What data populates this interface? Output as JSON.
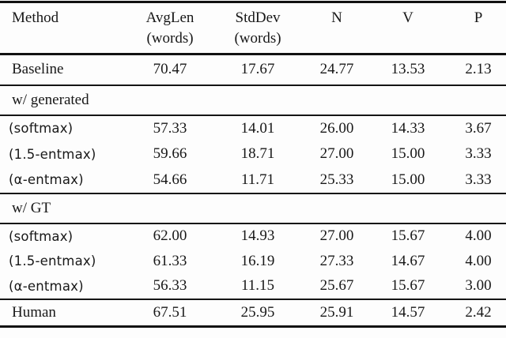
{
  "table": {
    "header": {
      "method": "Method",
      "avglen_line1": "AvgLen",
      "avglen_line2": "(words)",
      "stddev_line1": "StdDev",
      "stddev_line2": "(words)",
      "n": "N",
      "v": "V",
      "p": "P"
    },
    "sections": {
      "generated": "w/ generated",
      "gt": "w/ GT"
    },
    "rows": {
      "baseline": {
        "method": "Baseline",
        "values": [
          "70.47",
          "17.67",
          "24.77",
          "13.53",
          "2.13"
        ]
      },
      "gen_softmax": {
        "method": "(softmax)",
        "values": [
          "57.33",
          "14.01",
          "26.00",
          "14.33",
          "3.67"
        ]
      },
      "gen_entmax15": {
        "method": "(1.5-entmax)",
        "values": [
          "59.66",
          "18.71",
          "27.00",
          "15.00",
          "3.33"
        ]
      },
      "gen_alpha": {
        "method": "(α-entmax)",
        "values": [
          "54.66",
          "11.71",
          "25.33",
          "15.00",
          "3.33"
        ]
      },
      "gt_softmax": {
        "method": "(softmax)",
        "values": [
          "62.00",
          "14.93",
          "27.00",
          "15.67",
          "4.00"
        ]
      },
      "gt_entmax15": {
        "method": "(1.5-entmax)",
        "values": [
          "61.33",
          "16.19",
          "27.33",
          "14.67",
          "4.00"
        ]
      },
      "gt_alpha": {
        "method": "(α-entmax)",
        "values": [
          "56.33",
          "11.15",
          "25.67",
          "15.67",
          "3.00"
        ]
      },
      "human": {
        "method": "Human",
        "values": [
          "67.51",
          "25.95",
          "25.91",
          "14.57",
          "2.42"
        ]
      }
    },
    "colors": {
      "ink": "#181818",
      "rule": "#111111",
      "background": "#fdfdfd"
    }
  }
}
